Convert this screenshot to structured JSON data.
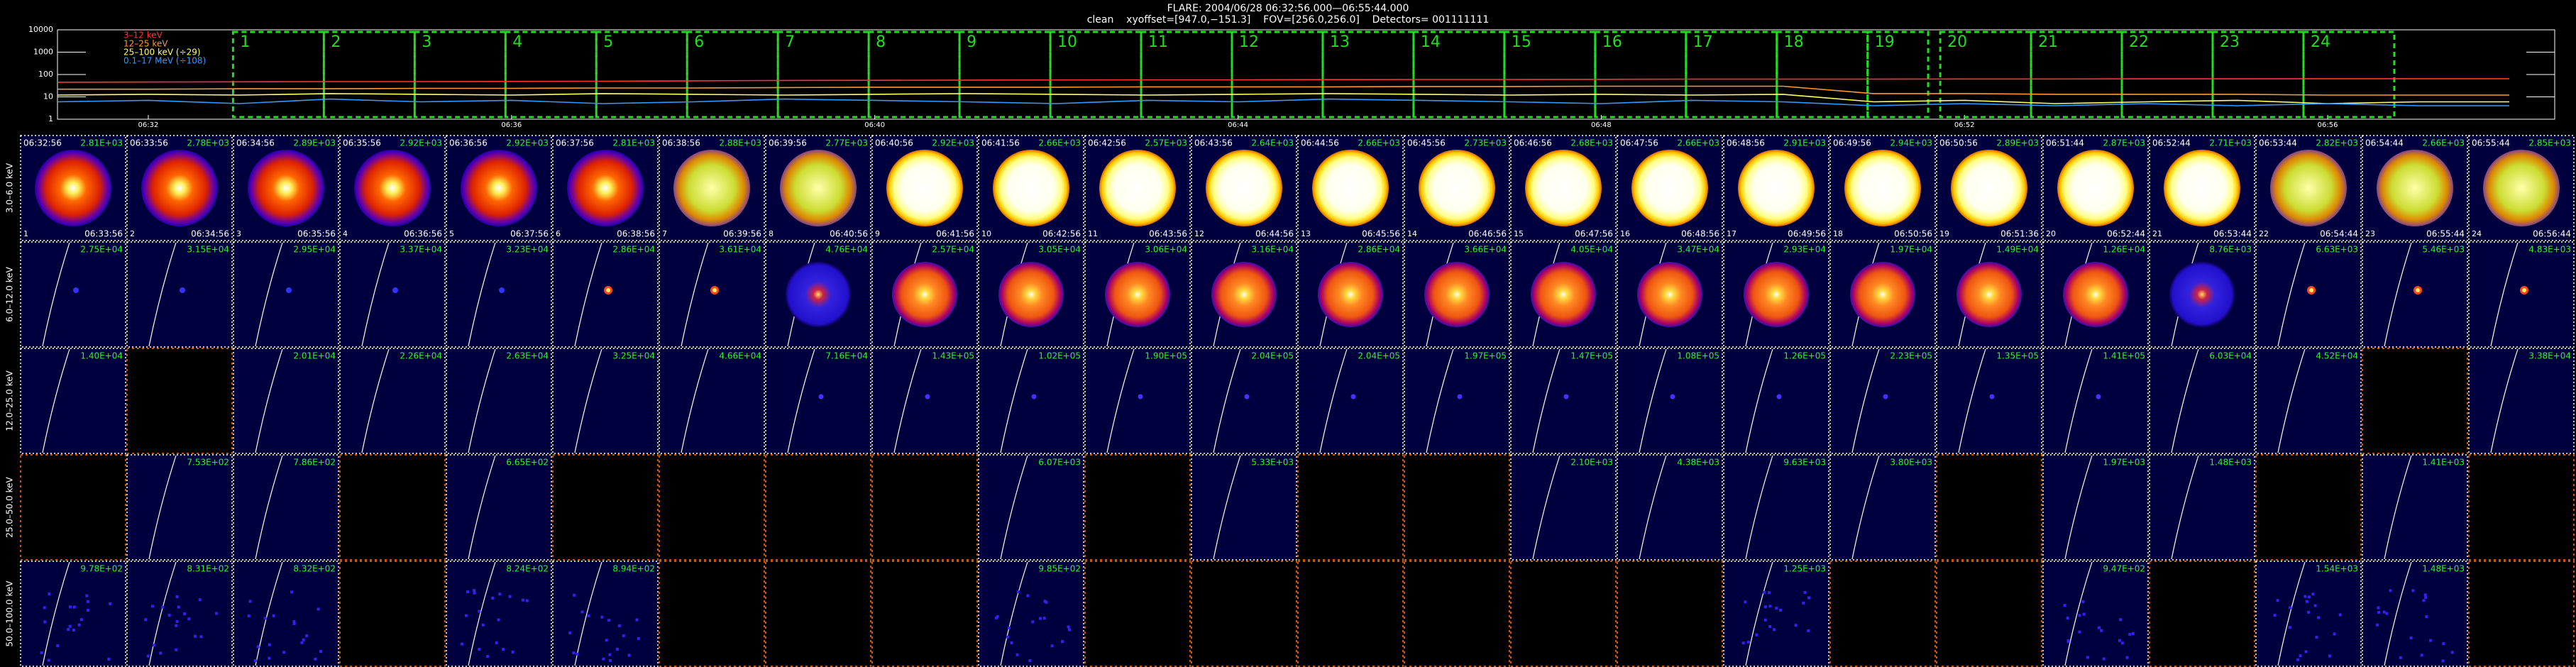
{
  "header": {
    "title": "FLARE: 2004/06/28 06:32:56.000—06:55:44.000",
    "subtitle": "clean    xyoffset=[947.0,−151.3]    FOV=[256.0,256.0]    Detectors= 001111111"
  },
  "chart_data": {
    "type": "line",
    "log_y": true,
    "x": [
      "06:31",
      "06:32",
      "06:33",
      "06:34",
      "06:35",
      "06:36",
      "06:37",
      "06:38",
      "06:39",
      "06:40",
      "06:41",
      "06:42",
      "06:43",
      "06:44",
      "06:45",
      "06:46",
      "06:47",
      "06:48",
      "06:49",
      "06:50",
      "06:51",
      "06:52",
      "06:53",
      "06:54",
      "06:55",
      "06:56",
      "06:57",
      "06:58"
    ],
    "xlim": [
      "06:31:00",
      "06:58:30"
    ],
    "xticks": [
      "06:32",
      "06:36",
      "06:40",
      "06:44",
      "06:48",
      "06:52",
      "06:56"
    ],
    "ylim": [
      1,
      10000
    ],
    "yticks": [
      1,
      10,
      100,
      1000,
      10000
    ],
    "series": [
      {
        "name": "3–12 keV",
        "color": "#ff3333",
        "values": [
          45,
          46,
          47,
          48,
          48,
          49,
          50,
          52,
          54,
          55,
          56,
          57,
          58,
          58,
          59,
          60,
          60,
          61,
          62,
          62,
          62,
          63,
          63,
          64,
          64,
          65,
          65,
          65
        ]
      },
      {
        "name": "12–25 keV",
        "color": "#ff9933",
        "values": [
          22,
          22,
          23,
          23,
          24,
          24,
          25,
          25,
          26,
          27,
          27,
          27,
          28,
          28,
          28,
          29,
          29,
          30,
          30,
          30,
          14,
          14,
          13,
          13,
          13,
          12,
          12,
          12
        ]
      },
      {
        "name": "25–100 keV (÷29)",
        "color": "#ffff66",
        "values": [
          12,
          13,
          12,
          14,
          13,
          12,
          14,
          13,
          12,
          13,
          14,
          13,
          12,
          13,
          14,
          13,
          12,
          13,
          12,
          13,
          6,
          7,
          5,
          6,
          7,
          5,
          6,
          6
        ]
      },
      {
        "name": "0.1–17 MeV (÷108)",
        "color": "#3399ff",
        "values": [
          6,
          7,
          5,
          8,
          6,
          7,
          5,
          6,
          8,
          7,
          6,
          5,
          7,
          6,
          8,
          7,
          6,
          5,
          7,
          6,
          4,
          5,
          4,
          5,
          4,
          5,
          4,
          4
        ]
      }
    ],
    "interval_labels": [
      1,
      2,
      3,
      4,
      5,
      6,
      7,
      8,
      9,
      10,
      11,
      12,
      13,
      14,
      15,
      16,
      17,
      18,
      19,
      20,
      21,
      22,
      23,
      24
    ]
  },
  "image_grid": {
    "start_times": [
      "06:32:56",
      "06:33:56",
      "06:34:56",
      "06:35:56",
      "06:36:56",
      "06:37:56",
      "06:38:56",
      "06:39:56",
      "06:40:56",
      "06:41:56",
      "06:42:56",
      "06:43:56",
      "06:44:56",
      "06:45:56",
      "06:46:56",
      "06:47:56",
      "06:48:56",
      "06:49:56",
      "06:50:56",
      "06:51:44",
      "06:52:44",
      "06:53:44",
      "06:54:44",
      "06:55:44"
    ],
    "end_times": [
      "06:33:56",
      "06:34:56",
      "06:35:56",
      "06:36:56",
      "06:37:56",
      "06:38:56",
      "06:39:56",
      "06:40:56",
      "06:41:56",
      "06:42:56",
      "06:43:56",
      "06:44:56",
      "06:45:56",
      "06:46:56",
      "06:47:56",
      "06:48:56",
      "06:49:56",
      "06:50:56",
      "06:51:36",
      "06:52:44",
      "06:53:44",
      "06:54:44",
      "06:55:44",
      "06:56:44"
    ],
    "rows": [
      {
        "label": "3.0–6.0 keV",
        "peaks": [
          "2.81E+03",
          "2.78E+03",
          "2.89E+03",
          "2.92E+03",
          "2.92E+03",
          "2.81E+03",
          "2.88E+03",
          "2.77E+03",
          "2.92E+03",
          "2.66E+03",
          "2.57E+03",
          "2.64E+03",
          "2.66E+03",
          "2.73E+03",
          "2.68E+03",
          "2.66E+03",
          "2.91E+03",
          "2.94E+03",
          "2.89E+03",
          "2.87E+03",
          "2.71E+03",
          "2.82E+03",
          "2.66E+03",
          "2.85E+03"
        ]
      },
      {
        "label": "6.0–12.0 keV",
        "peaks": [
          "2.75E+04",
          "3.15E+04",
          "2.95E+04",
          "3.37E+04",
          "3.23E+04",
          "2.86E+04",
          "3.61E+04",
          "4.76E+04",
          "2.57E+04",
          "3.05E+04",
          "3.06E+04",
          "3.16E+04",
          "2.86E+04",
          "3.66E+04",
          "4.05E+04",
          "3.47E+04",
          "2.93E+04",
          "1.97E+04",
          "1.49E+04",
          "1.26E+04",
          "8.76E+03",
          "6.63E+03",
          "5.46E+03",
          "4.83E+03"
        ]
      },
      {
        "label": "12.0–25.0 keV",
        "peaks": [
          "1.40E+04",
          null,
          "2.01E+04",
          "2.26E+04",
          "2.63E+04",
          "3.25E+04",
          "4.66E+04",
          "7.16E+04",
          "1.43E+05",
          "1.02E+05",
          "1.90E+05",
          "2.04E+05",
          "2.04E+05",
          "1.97E+05",
          "1.47E+05",
          "1.08E+05",
          "1.26E+05",
          "2.23E+05",
          "1.35E+05",
          "1.41E+05",
          "6.03E+04",
          "4.52E+04",
          null,
          "3.38E+04"
        ]
      },
      {
        "label": "25.0–50.0 keV",
        "peaks": [
          null,
          "7.53E+02",
          "7.86E+02",
          null,
          "6.65E+02",
          null,
          null,
          null,
          null,
          "6.07E+03",
          null,
          "5.33E+03",
          null,
          null,
          "2.10E+03",
          "4.38E+03",
          "9.63E+03",
          "3.80E+03",
          null,
          "1.97E+03",
          "1.48E+03",
          null,
          "1.41E+03",
          null
        ]
      },
      {
        "label": "50.0–100.0 keV",
        "peaks": [
          "9.78E+02",
          "8.31E+02",
          "8.32E+02",
          null,
          "8.24E+02",
          "8.94E+02",
          null,
          null,
          null,
          "9.85E+02",
          null,
          null,
          null,
          null,
          null,
          null,
          "1.25E+03",
          null,
          null,
          "9.47E+02",
          null,
          "1.54E+03",
          "1.48E+03",
          null
        ]
      }
    ]
  }
}
